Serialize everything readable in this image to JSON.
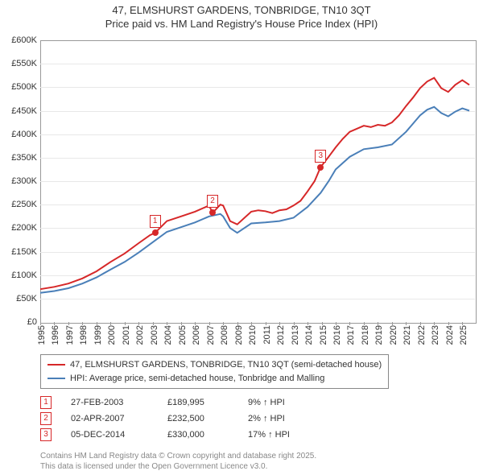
{
  "title_line1": "47, ELMSHURST GARDENS, TONBRIDGE, TN10 3QT",
  "title_line2": "Price paid vs. HM Land Registry's House Price Index (HPI)",
  "chart": {
    "x_start": 1995,
    "x_end": 2025.9,
    "xticks": [
      1995,
      1996,
      1997,
      1998,
      1999,
      2000,
      2001,
      2002,
      2003,
      2004,
      2005,
      2006,
      2007,
      2008,
      2009,
      2010,
      2011,
      2012,
      2013,
      2014,
      2015,
      2016,
      2017,
      2018,
      2019,
      2020,
      2021,
      2022,
      2023,
      2024,
      2025
    ],
    "ylim": [
      0,
      600000
    ],
    "ytick_step": 50000,
    "ytick_labels": [
      "£0",
      "£50K",
      "£100K",
      "£150K",
      "£200K",
      "£250K",
      "£300K",
      "£350K",
      "£400K",
      "£450K",
      "£500K",
      "£550K",
      "£600K"
    ],
    "grid_color": "#e8e8e8",
    "series_price": {
      "color": "#d62728",
      "width": 2,
      "points": [
        [
          1995,
          70000
        ],
        [
          1996,
          75000
        ],
        [
          1997,
          82000
        ],
        [
          1998,
          93000
        ],
        [
          1999,
          108000
        ],
        [
          2000,
          128000
        ],
        [
          2001,
          146000
        ],
        [
          2002,
          168000
        ],
        [
          2002.8,
          185000
        ],
        [
          2003.16,
          189995
        ],
        [
          2004,
          215000
        ],
        [
          2005,
          225000
        ],
        [
          2006,
          235000
        ],
        [
          2007,
          248000
        ],
        [
          2007.25,
          232500
        ],
        [
          2007.8,
          250000
        ],
        [
          2008,
          248000
        ],
        [
          2008.5,
          215000
        ],
        [
          2009,
          208000
        ],
        [
          2010,
          235000
        ],
        [
          2010.5,
          238000
        ],
        [
          2011,
          236000
        ],
        [
          2011.5,
          232000
        ],
        [
          2012,
          238000
        ],
        [
          2012.5,
          240000
        ],
        [
          2013,
          248000
        ],
        [
          2013.5,
          258000
        ],
        [
          2014,
          278000
        ],
        [
          2014.5,
          300000
        ],
        [
          2014.93,
          330000
        ],
        [
          2015.5,
          352000
        ],
        [
          2016,
          372000
        ],
        [
          2016.5,
          390000
        ],
        [
          2017,
          405000
        ],
        [
          2018,
          418000
        ],
        [
          2018.5,
          415000
        ],
        [
          2019,
          420000
        ],
        [
          2019.5,
          418000
        ],
        [
          2020,
          425000
        ],
        [
          2020.5,
          440000
        ],
        [
          2021,
          460000
        ],
        [
          2021.5,
          478000
        ],
        [
          2022,
          498000
        ],
        [
          2022.5,
          512000
        ],
        [
          2023,
          520000
        ],
        [
          2023.5,
          498000
        ],
        [
          2024,
          490000
        ],
        [
          2024.5,
          505000
        ],
        [
          2025,
          515000
        ],
        [
          2025.5,
          505000
        ]
      ]
    },
    "series_hpi": {
      "color": "#4a7fb8",
      "width": 2,
      "points": [
        [
          1995,
          62000
        ],
        [
          1996,
          66000
        ],
        [
          1997,
          72000
        ],
        [
          1998,
          82000
        ],
        [
          1999,
          95000
        ],
        [
          2000,
          112000
        ],
        [
          2001,
          128000
        ],
        [
          2002,
          148000
        ],
        [
          2003,
          170000
        ],
        [
          2004,
          192000
        ],
        [
          2005,
          202000
        ],
        [
          2006,
          212000
        ],
        [
          2007,
          225000
        ],
        [
          2007.8,
          230000
        ],
        [
          2008,
          225000
        ],
        [
          2008.5,
          200000
        ],
        [
          2009,
          190000
        ],
        [
          2010,
          210000
        ],
        [
          2011,
          212000
        ],
        [
          2012,
          215000
        ],
        [
          2013,
          222000
        ],
        [
          2014,
          245000
        ],
        [
          2014.93,
          275000
        ],
        [
          2015.5,
          300000
        ],
        [
          2016,
          325000
        ],
        [
          2017,
          352000
        ],
        [
          2018,
          368000
        ],
        [
          2019,
          372000
        ],
        [
          2020,
          378000
        ],
        [
          2021,
          405000
        ],
        [
          2022,
          440000
        ],
        [
          2022.5,
          452000
        ],
        [
          2023,
          458000
        ],
        [
          2023.5,
          445000
        ],
        [
          2024,
          438000
        ],
        [
          2024.5,
          448000
        ],
        [
          2025,
          455000
        ],
        [
          2025.5,
          450000
        ]
      ]
    },
    "sale_markers": [
      {
        "n": "1",
        "x": 2003.16,
        "y": 189995,
        "color": "#d62728"
      },
      {
        "n": "2",
        "x": 2007.25,
        "y": 232500,
        "color": "#d62728"
      },
      {
        "n": "3",
        "x": 2014.93,
        "y": 330000,
        "color": "#d62728"
      }
    ]
  },
  "legend": {
    "items": [
      {
        "color": "#d62728",
        "label": "47, ELMSHURST GARDENS, TONBRIDGE, TN10 3QT (semi-detached house)"
      },
      {
        "color": "#4a7fb8",
        "label": "HPI: Average price, semi-detached house, Tonbridge and Malling"
      }
    ]
  },
  "sales": [
    {
      "n": "1",
      "color": "#d62728",
      "date": "27-FEB-2003",
      "price": "£189,995",
      "pct": "9% ↑ HPI"
    },
    {
      "n": "2",
      "color": "#d62728",
      "date": "02-APR-2007",
      "price": "£232,500",
      "pct": "2% ↑ HPI"
    },
    {
      "n": "3",
      "color": "#d62728",
      "date": "05-DEC-2014",
      "price": "£330,000",
      "pct": "17% ↑ HPI"
    }
  ],
  "footer_line1": "Contains HM Land Registry data © Crown copyright and database right 2025.",
  "footer_line2": "This data is licensed under the Open Government Licence v3.0."
}
